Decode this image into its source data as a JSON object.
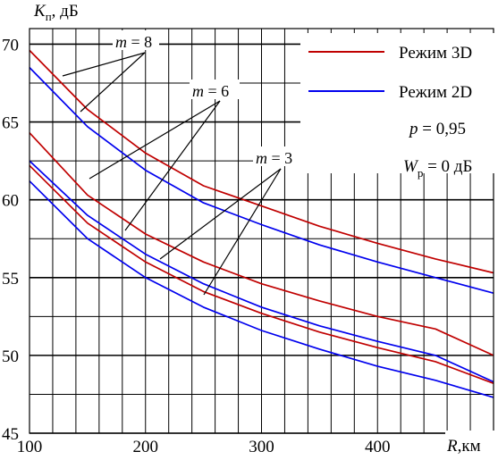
{
  "chart_data": {
    "type": "line",
    "ylabel_main": "K",
    "ylabel_sub": "п",
    "ylabel_unit": ", дБ",
    "xlabel_main": "R",
    "xlabel_unit": ",км",
    "xlim": [
      100,
      500
    ],
    "ylim": [
      45,
      71
    ],
    "x_ticks": [
      100,
      200,
      300,
      400
    ],
    "y_ticks": [
      45,
      50,
      55,
      60,
      65,
      70
    ],
    "grid": true,
    "colors": {
      "3D": "#c00000",
      "2D": "#0000ee"
    },
    "legend": {
      "position": "top-right",
      "items": [
        {
          "label": "Режим 3D",
          "color": "#c00000"
        },
        {
          "label": "Режим 2D",
          "color": "#0000ee"
        }
      ]
    },
    "params": [
      {
        "var": "p",
        "sub": "",
        "rest": " = 0,95"
      },
      {
        "var": "W",
        "sub": "р",
        "rest": " = 0 дБ"
      }
    ],
    "annotations": [
      {
        "var": "m",
        "rest": " = 8"
      },
      {
        "var": "m",
        "rest": " = 6"
      },
      {
        "var": "m",
        "rest": " = 3"
      }
    ],
    "series": [
      {
        "m": 8,
        "mode": "3D",
        "x": [
          100,
          150,
          200,
          250,
          300,
          350,
          400,
          450,
          500
        ],
        "y": [
          69.6,
          65.8,
          63.0,
          60.9,
          59.6,
          58.3,
          57.2,
          56.2,
          55.3
        ]
      },
      {
        "m": 8,
        "mode": "2D",
        "x": [
          100,
          150,
          200,
          250,
          300,
          350,
          400,
          450,
          500
        ],
        "y": [
          68.5,
          64.7,
          61.9,
          59.8,
          58.4,
          57.1,
          56.0,
          55.0,
          54.0
        ]
      },
      {
        "m": 6,
        "mode": "3D",
        "x": [
          100,
          150,
          200,
          250,
          300,
          350,
          400,
          450,
          500
        ],
        "y": [
          64.3,
          60.3,
          57.8,
          56.0,
          54.6,
          53.5,
          52.5,
          51.7,
          50.0
        ]
      },
      {
        "m": 6,
        "mode": "2D",
        "x": [
          100,
          150,
          200,
          250,
          300,
          350,
          400,
          450,
          500
        ],
        "y": [
          62.5,
          59.0,
          56.5,
          54.6,
          53.1,
          51.9,
          50.9,
          50.0,
          48.3
        ]
      },
      {
        "m": 3,
        "mode": "3D",
        "x": [
          100,
          150,
          200,
          250,
          300,
          350,
          400,
          450,
          500
        ],
        "y": [
          62.2,
          58.5,
          56.0,
          54.1,
          52.7,
          51.5,
          50.5,
          49.6,
          48.2
        ]
      },
      {
        "m": 3,
        "mode": "2D",
        "x": [
          100,
          150,
          200,
          250,
          300,
          350,
          400,
          450,
          500
        ],
        "y": [
          61.2,
          57.5,
          55.0,
          53.1,
          51.6,
          50.4,
          49.3,
          48.4,
          47.3
        ]
      }
    ]
  }
}
